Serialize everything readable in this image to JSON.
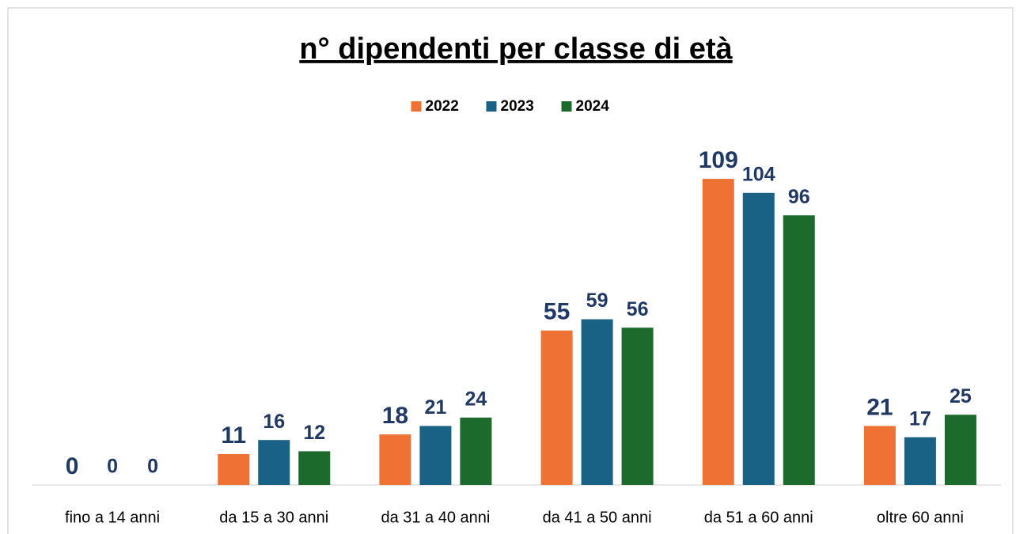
{
  "chart_data": {
    "type": "bar",
    "title": "n° dipendenti per classe di età",
    "categories": [
      "fino a 14 anni",
      "da 15 a 30 anni",
      "da 31 a 40 anni",
      "da 41 a 50 anni",
      "da 51 a 60 anni",
      "oltre 60 anni"
    ],
    "series": [
      {
        "name": "2022",
        "color": "#ED7234",
        "values": [
          0,
          11,
          18,
          55,
          109,
          21
        ]
      },
      {
        "name": "2023",
        "color": "#1A6186",
        "values": [
          0,
          16,
          21,
          59,
          104,
          17
        ]
      },
      {
        "name": "2024",
        "color": "#1C6B2C",
        "values": [
          0,
          12,
          24,
          56,
          96,
          25
        ]
      }
    ],
    "ylim": [
      0,
      120
    ],
    "legend": "top"
  }
}
